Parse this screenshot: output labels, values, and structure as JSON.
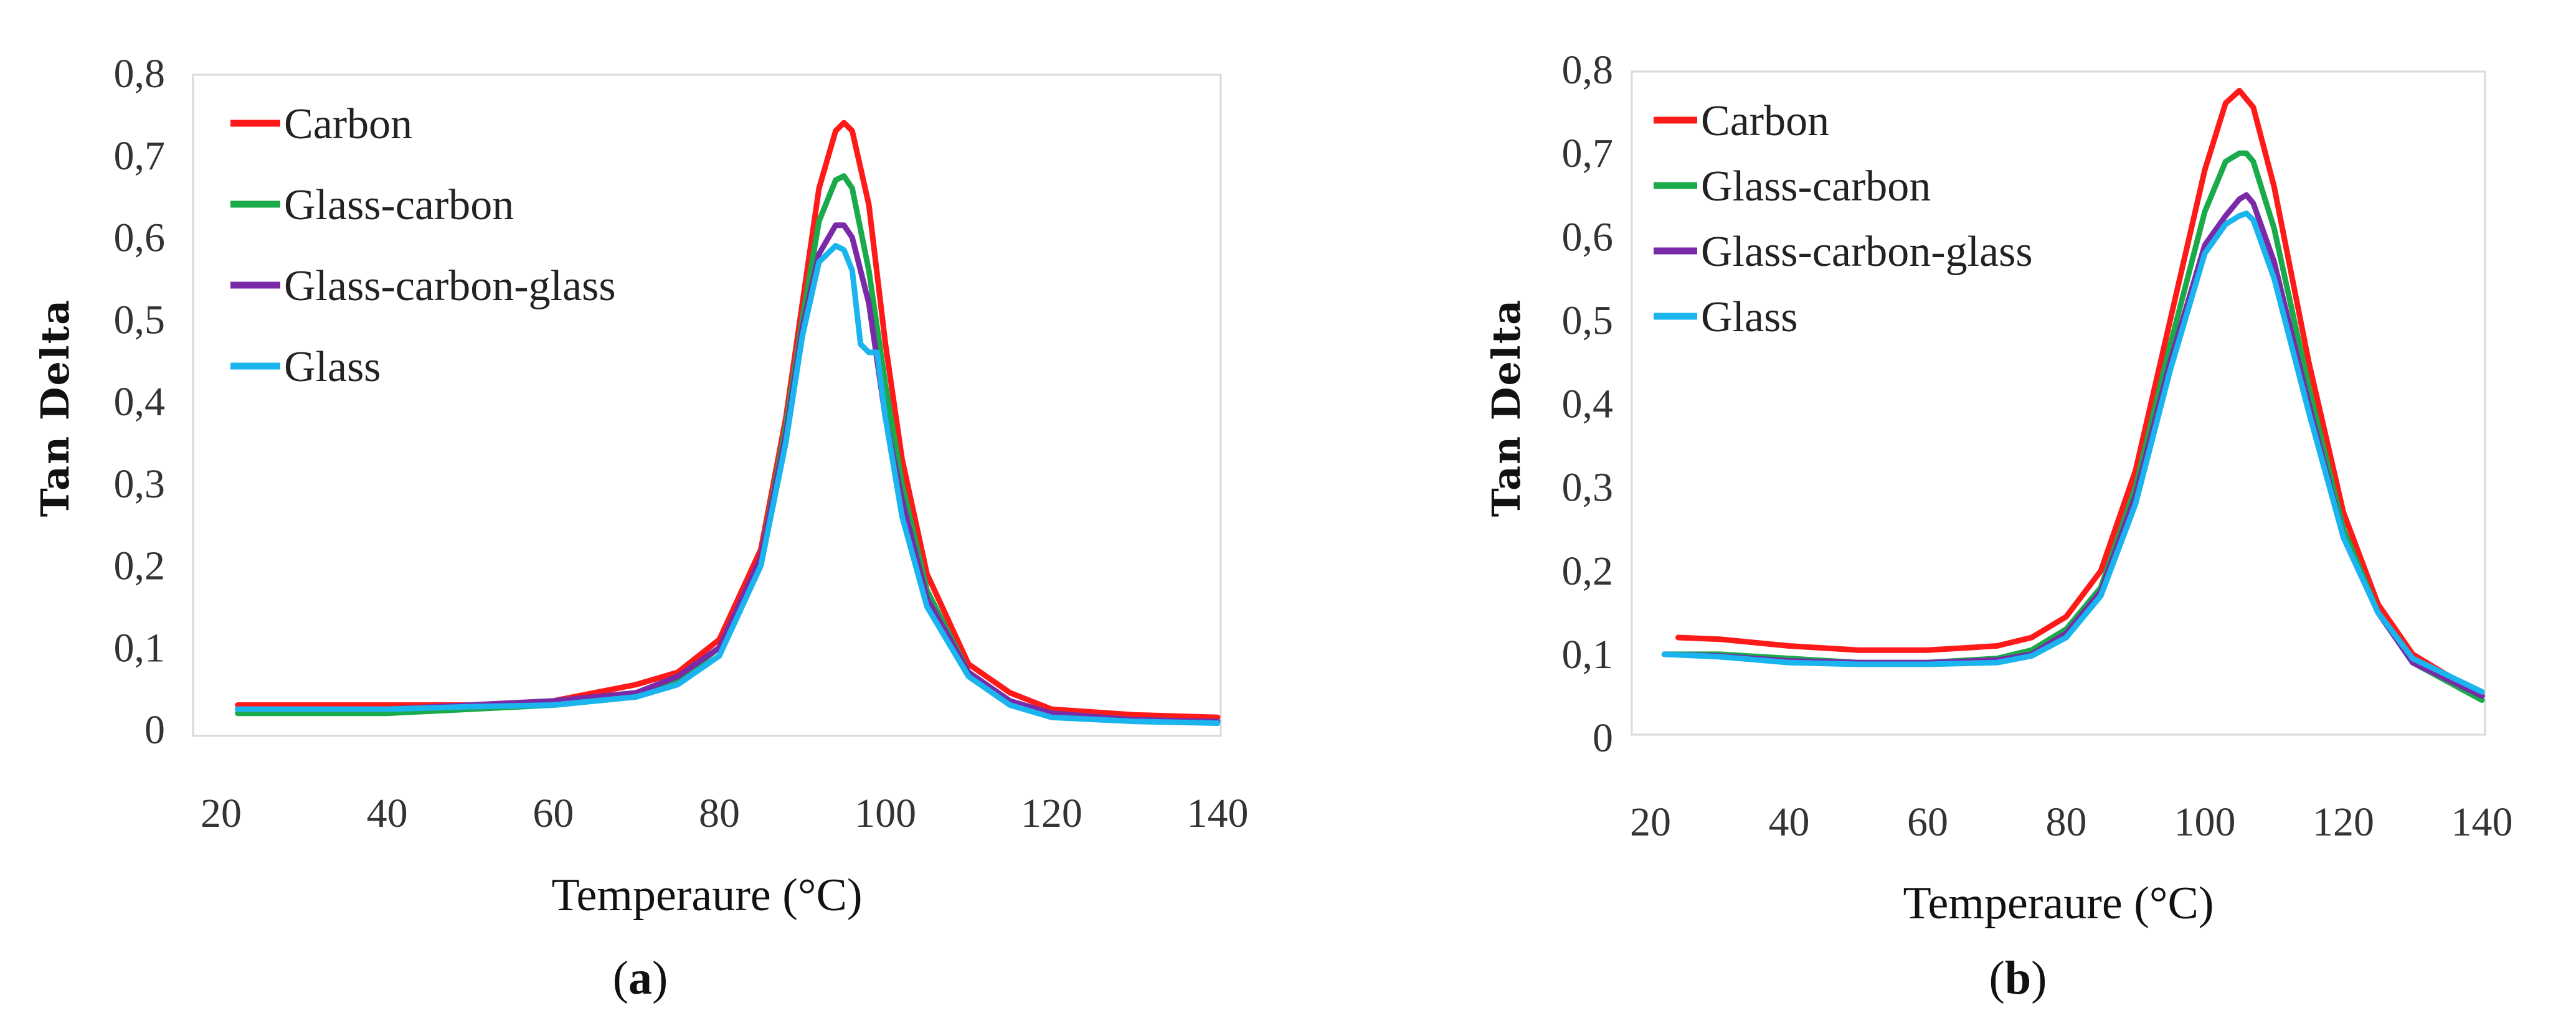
{
  "chart_data": [
    {
      "type": "line",
      "panel_label": {
        "open": "(",
        "letter": "a",
        "close": ")"
      },
      "xlabel": "Temperaure (°C)",
      "ylabel": "Tan Delta",
      "xlim": [
        20,
        140
      ],
      "ylim": [
        0,
        0.8
      ],
      "x_ticks": [
        20,
        40,
        60,
        80,
        100,
        120,
        140
      ],
      "x_tick_labels": [
        "20",
        "40",
        "60",
        "80",
        "100",
        "120",
        "140"
      ],
      "y_ticks": [
        0,
        0.1,
        0.2,
        0.3,
        0.4,
        0.5,
        0.6,
        0.7,
        0.8
      ],
      "y_tick_labels": [
        "0",
        "0,1",
        "0,2",
        "0,3",
        "0,4",
        "0,5",
        "0,6",
        "0,7",
        "0,8"
      ],
      "grid": false,
      "legend_position": "top-left",
      "series": [
        {
          "name": "Carbon",
          "color": "#ff1a1a",
          "x": [
            22,
            30,
            40,
            50,
            60,
            65,
            70,
            75,
            80,
            85,
            88,
            90,
            92,
            94,
            95,
            96,
            98,
            100,
            102,
            105,
            110,
            115,
            120,
            130,
            140
          ],
          "y": [
            0.03,
            0.03,
            0.03,
            0.03,
            0.035,
            0.045,
            0.055,
            0.07,
            0.11,
            0.22,
            0.38,
            0.52,
            0.66,
            0.73,
            0.74,
            0.73,
            0.64,
            0.47,
            0.33,
            0.19,
            0.08,
            0.045,
            0.025,
            0.018,
            0.015
          ]
        },
        {
          "name": "Glass-carbon",
          "color": "#1aaa4a",
          "x": [
            22,
            30,
            40,
            50,
            60,
            65,
            70,
            75,
            80,
            85,
            88,
            90,
            92,
            94,
            95,
            96,
            98,
            100,
            102,
            105,
            110,
            115,
            120,
            130,
            140
          ],
          "y": [
            0.02,
            0.02,
            0.02,
            0.025,
            0.03,
            0.035,
            0.04,
            0.06,
            0.1,
            0.21,
            0.37,
            0.5,
            0.62,
            0.67,
            0.675,
            0.66,
            0.56,
            0.42,
            0.3,
            0.17,
            0.07,
            0.035,
            0.02,
            0.012,
            0.01
          ]
        },
        {
          "name": "Glass-carbon-glass",
          "color": "#7a2aa8",
          "x": [
            22,
            30,
            40,
            50,
            60,
            65,
            70,
            75,
            80,
            85,
            88,
            90,
            92,
            94,
            95,
            96,
            98,
            100,
            102,
            105,
            110,
            115,
            120,
            130,
            140
          ],
          "y": [
            0.025,
            0.025,
            0.025,
            0.03,
            0.035,
            0.04,
            0.045,
            0.065,
            0.1,
            0.21,
            0.36,
            0.49,
            0.58,
            0.615,
            0.615,
            0.6,
            0.52,
            0.38,
            0.28,
            0.16,
            0.07,
            0.035,
            0.02,
            0.012,
            0.01
          ]
        },
        {
          "name": "Glass",
          "color": "#1ab4ee",
          "x": [
            22,
            30,
            40,
            50,
            60,
            65,
            70,
            75,
            80,
            85,
            88,
            90,
            92,
            94,
            95,
            96,
            97,
            98,
            99,
            100,
            102,
            105,
            110,
            115,
            120,
            130,
            140
          ],
          "y": [
            0.025,
            0.025,
            0.025,
            0.028,
            0.03,
            0.035,
            0.04,
            0.055,
            0.09,
            0.2,
            0.35,
            0.48,
            0.57,
            0.59,
            0.585,
            0.56,
            0.47,
            0.46,
            0.46,
            0.38,
            0.26,
            0.15,
            0.065,
            0.03,
            0.015,
            0.01,
            0.008
          ]
        }
      ]
    },
    {
      "type": "line",
      "panel_label": {
        "open": "(",
        "letter": "b",
        "close": ")"
      },
      "xlabel": "Temperaure (°C)",
      "ylabel": "Tan Delta",
      "xlim": [
        20,
        140
      ],
      "ylim": [
        0,
        0.8
      ],
      "x_ticks": [
        20,
        40,
        60,
        80,
        100,
        120,
        140
      ],
      "x_tick_labels": [
        "20",
        "40",
        "60",
        "80",
        "100",
        "120",
        "140"
      ],
      "y_ticks": [
        0,
        0.1,
        0.2,
        0.3,
        0.4,
        0.5,
        0.6,
        0.7,
        0.8
      ],
      "y_tick_labels": [
        "0",
        "0,1",
        "0,2",
        "0,3",
        "0,4",
        "0,5",
        "0,6",
        "0,7",
        "0,8"
      ],
      "grid": false,
      "legend_position": "top-left",
      "series": [
        {
          "name": "Carbon",
          "color": "#ff1a1a",
          "x": [
            24,
            30,
            40,
            50,
            60,
            70,
            75,
            80,
            85,
            90,
            95,
            100,
            103,
            105,
            107,
            110,
            115,
            120,
            125,
            130,
            140
          ],
          "y": [
            0.12,
            0.118,
            0.11,
            0.105,
            0.105,
            0.11,
            0.12,
            0.145,
            0.2,
            0.32,
            0.5,
            0.68,
            0.76,
            0.775,
            0.755,
            0.66,
            0.45,
            0.27,
            0.16,
            0.1,
            0.05
          ]
        },
        {
          "name": "Glass-carbon",
          "color": "#1aaa4a",
          "x": [
            22,
            30,
            40,
            50,
            60,
            70,
            75,
            80,
            85,
            90,
            95,
            100,
            103,
            105,
            106,
            107,
            110,
            115,
            120,
            125,
            130,
            140
          ],
          "y": [
            0.1,
            0.1,
            0.095,
            0.09,
            0.09,
            0.095,
            0.105,
            0.13,
            0.18,
            0.3,
            0.47,
            0.63,
            0.69,
            0.7,
            0.7,
            0.69,
            0.61,
            0.42,
            0.25,
            0.15,
            0.09,
            0.045
          ]
        },
        {
          "name": "Glass-carbon-glass",
          "color": "#7a2aa8",
          "x": [
            22,
            30,
            40,
            50,
            60,
            70,
            75,
            80,
            85,
            90,
            95,
            100,
            103,
            105,
            106,
            107,
            110,
            115,
            120,
            125,
            130,
            140
          ],
          "y": [
            0.1,
            0.098,
            0.092,
            0.09,
            0.09,
            0.093,
            0.1,
            0.125,
            0.175,
            0.29,
            0.45,
            0.59,
            0.625,
            0.645,
            0.65,
            0.64,
            0.57,
            0.4,
            0.24,
            0.15,
            0.09,
            0.05
          ]
        },
        {
          "name": "Glass",
          "color": "#1ab4ee",
          "x": [
            22,
            30,
            40,
            50,
            60,
            70,
            75,
            80,
            85,
            90,
            95,
            100,
            103,
            105,
            106,
            107,
            110,
            115,
            120,
            125,
            130,
            140
          ],
          "y": [
            0.1,
            0.097,
            0.09,
            0.088,
            0.088,
            0.09,
            0.098,
            0.12,
            0.17,
            0.28,
            0.44,
            0.58,
            0.615,
            0.625,
            0.628,
            0.62,
            0.55,
            0.39,
            0.24,
            0.15,
            0.095,
            0.055
          ]
        }
      ]
    }
  ]
}
